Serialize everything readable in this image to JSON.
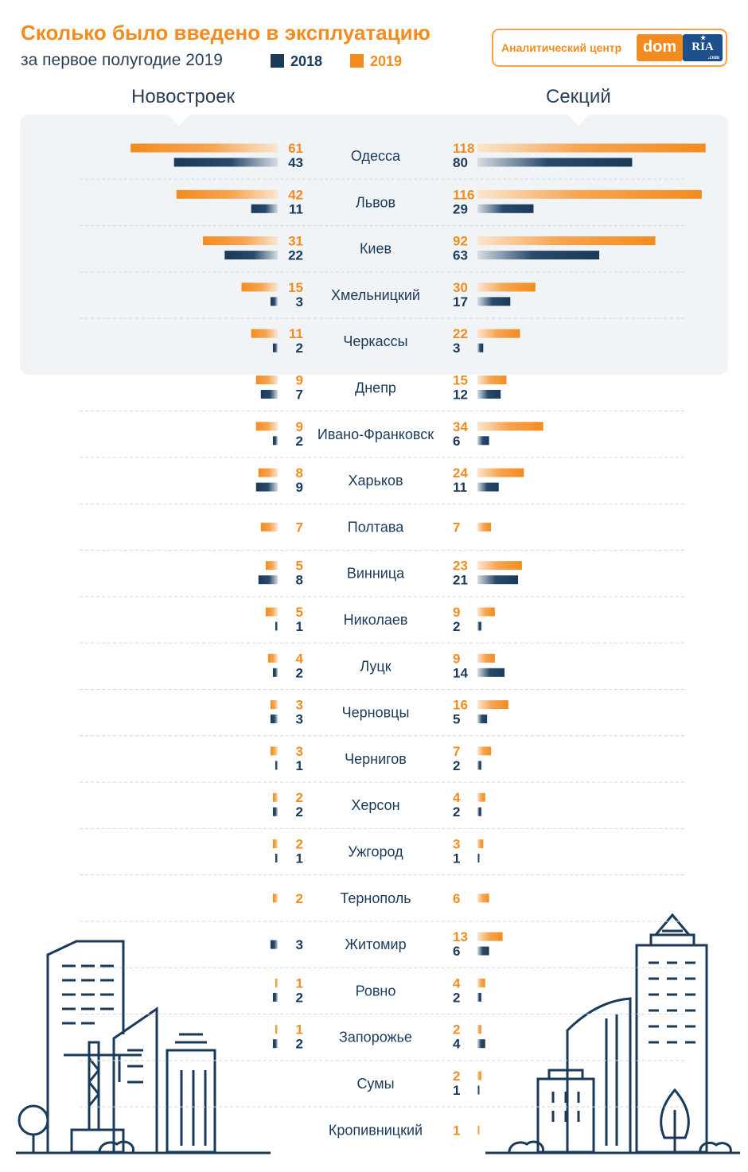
{
  "header": {
    "title": "Сколько было введено в эксплуатацию",
    "subtitle": "за первое полугодие 2019"
  },
  "legend": {
    "label_2018": "2018",
    "label_2019": "2019"
  },
  "logo": {
    "text": "Аналитический центр",
    "dom": "dom",
    "ria": "RIA",
    "com": ".com"
  },
  "colors": {
    "orange": "#f28c1e",
    "navy": "#1b3a5a",
    "panel": "#f1f4f7"
  },
  "chart_data": {
    "type": "bar",
    "orientation": "horizontal-butterfly",
    "left_title": "Новостроек",
    "right_title": "Секций",
    "categories": [
      "Одесса",
      "Львов",
      "Киев",
      "Хмельницкий",
      "Черкассы",
      "Днепр",
      "Ивано-Франковск",
      "Харьков",
      "Полтава",
      "Винница",
      "Николаев",
      "Луцк",
      "Черновцы",
      "Чернигов",
      "Херсон",
      "Ужгород",
      "Тернополь",
      "Житомир",
      "Ровно",
      "Запорожье",
      "Сумы",
      "Кропивницкий"
    ],
    "highlighted_top": 5,
    "novostroek": {
      "2019": [
        61,
        42,
        31,
        15,
        11,
        9,
        9,
        8,
        7,
        5,
        5,
        4,
        3,
        3,
        2,
        2,
        2,
        null,
        1,
        1,
        null,
        null
      ],
      "2018": [
        43,
        11,
        22,
        3,
        2,
        7,
        2,
        9,
        null,
        8,
        1,
        2,
        3,
        1,
        2,
        1,
        null,
        3,
        2,
        2,
        null,
        null
      ]
    },
    "sekciy": {
      "2019": [
        118,
        116,
        92,
        30,
        22,
        15,
        34,
        24,
        7,
        23,
        9,
        9,
        16,
        7,
        4,
        3,
        6,
        13,
        4,
        2,
        2,
        1
      ],
      "2018": [
        80,
        29,
        63,
        17,
        3,
        12,
        6,
        11,
        null,
        21,
        2,
        14,
        5,
        2,
        2,
        1,
        null,
        6,
        2,
        4,
        1,
        null
      ]
    }
  }
}
